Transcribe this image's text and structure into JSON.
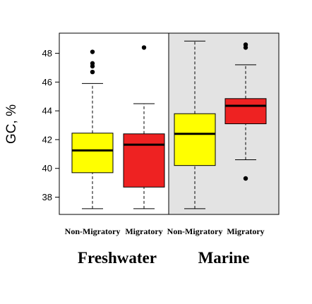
{
  "chart_data": {
    "type": "boxplot",
    "ylabel": "GC, %",
    "ylim": [
      36.8,
      49.4
    ],
    "yticks": [
      "38",
      "40",
      "42",
      "44",
      "46",
      "48"
    ],
    "groups": [
      {
        "label": "Freshwater",
        "shaded": false
      },
      {
        "label": "Marine",
        "shaded": true
      }
    ],
    "boxes": [
      {
        "group": 0,
        "category": "Non-Migratory",
        "color": "#ffff00",
        "whisker_low": 37.2,
        "q1": 39.7,
        "median": 41.25,
        "q3": 42.45,
        "whisker_high": 45.9,
        "outliers": [
          48.1,
          47.3,
          47.1,
          46.7
        ]
      },
      {
        "group": 0,
        "category": "Migratory",
        "color": "#ee2222",
        "whisker_low": 37.2,
        "q1": 38.7,
        "median": 41.65,
        "q3": 42.4,
        "whisker_high": 44.5,
        "outliers": [
          48.4
        ]
      },
      {
        "group": 1,
        "category": "Non-Migratory",
        "color": "#ffff00",
        "whisker_low": 37.2,
        "q1": 40.2,
        "median": 42.4,
        "q3": 43.8,
        "whisker_high": 48.85,
        "outliers": []
      },
      {
        "group": 1,
        "category": "Migratory",
        "color": "#ee2222",
        "whisker_low": 40.6,
        "q1": 43.1,
        "median": 44.35,
        "q3": 44.85,
        "whisker_high": 47.2,
        "outliers": [
          48.6,
          48.4,
          39.3
        ]
      }
    ],
    "colors": {
      "shaded_panel": "#e3e3e3",
      "non_migratory": "#ffff00",
      "migratory": "#ee2222"
    }
  }
}
